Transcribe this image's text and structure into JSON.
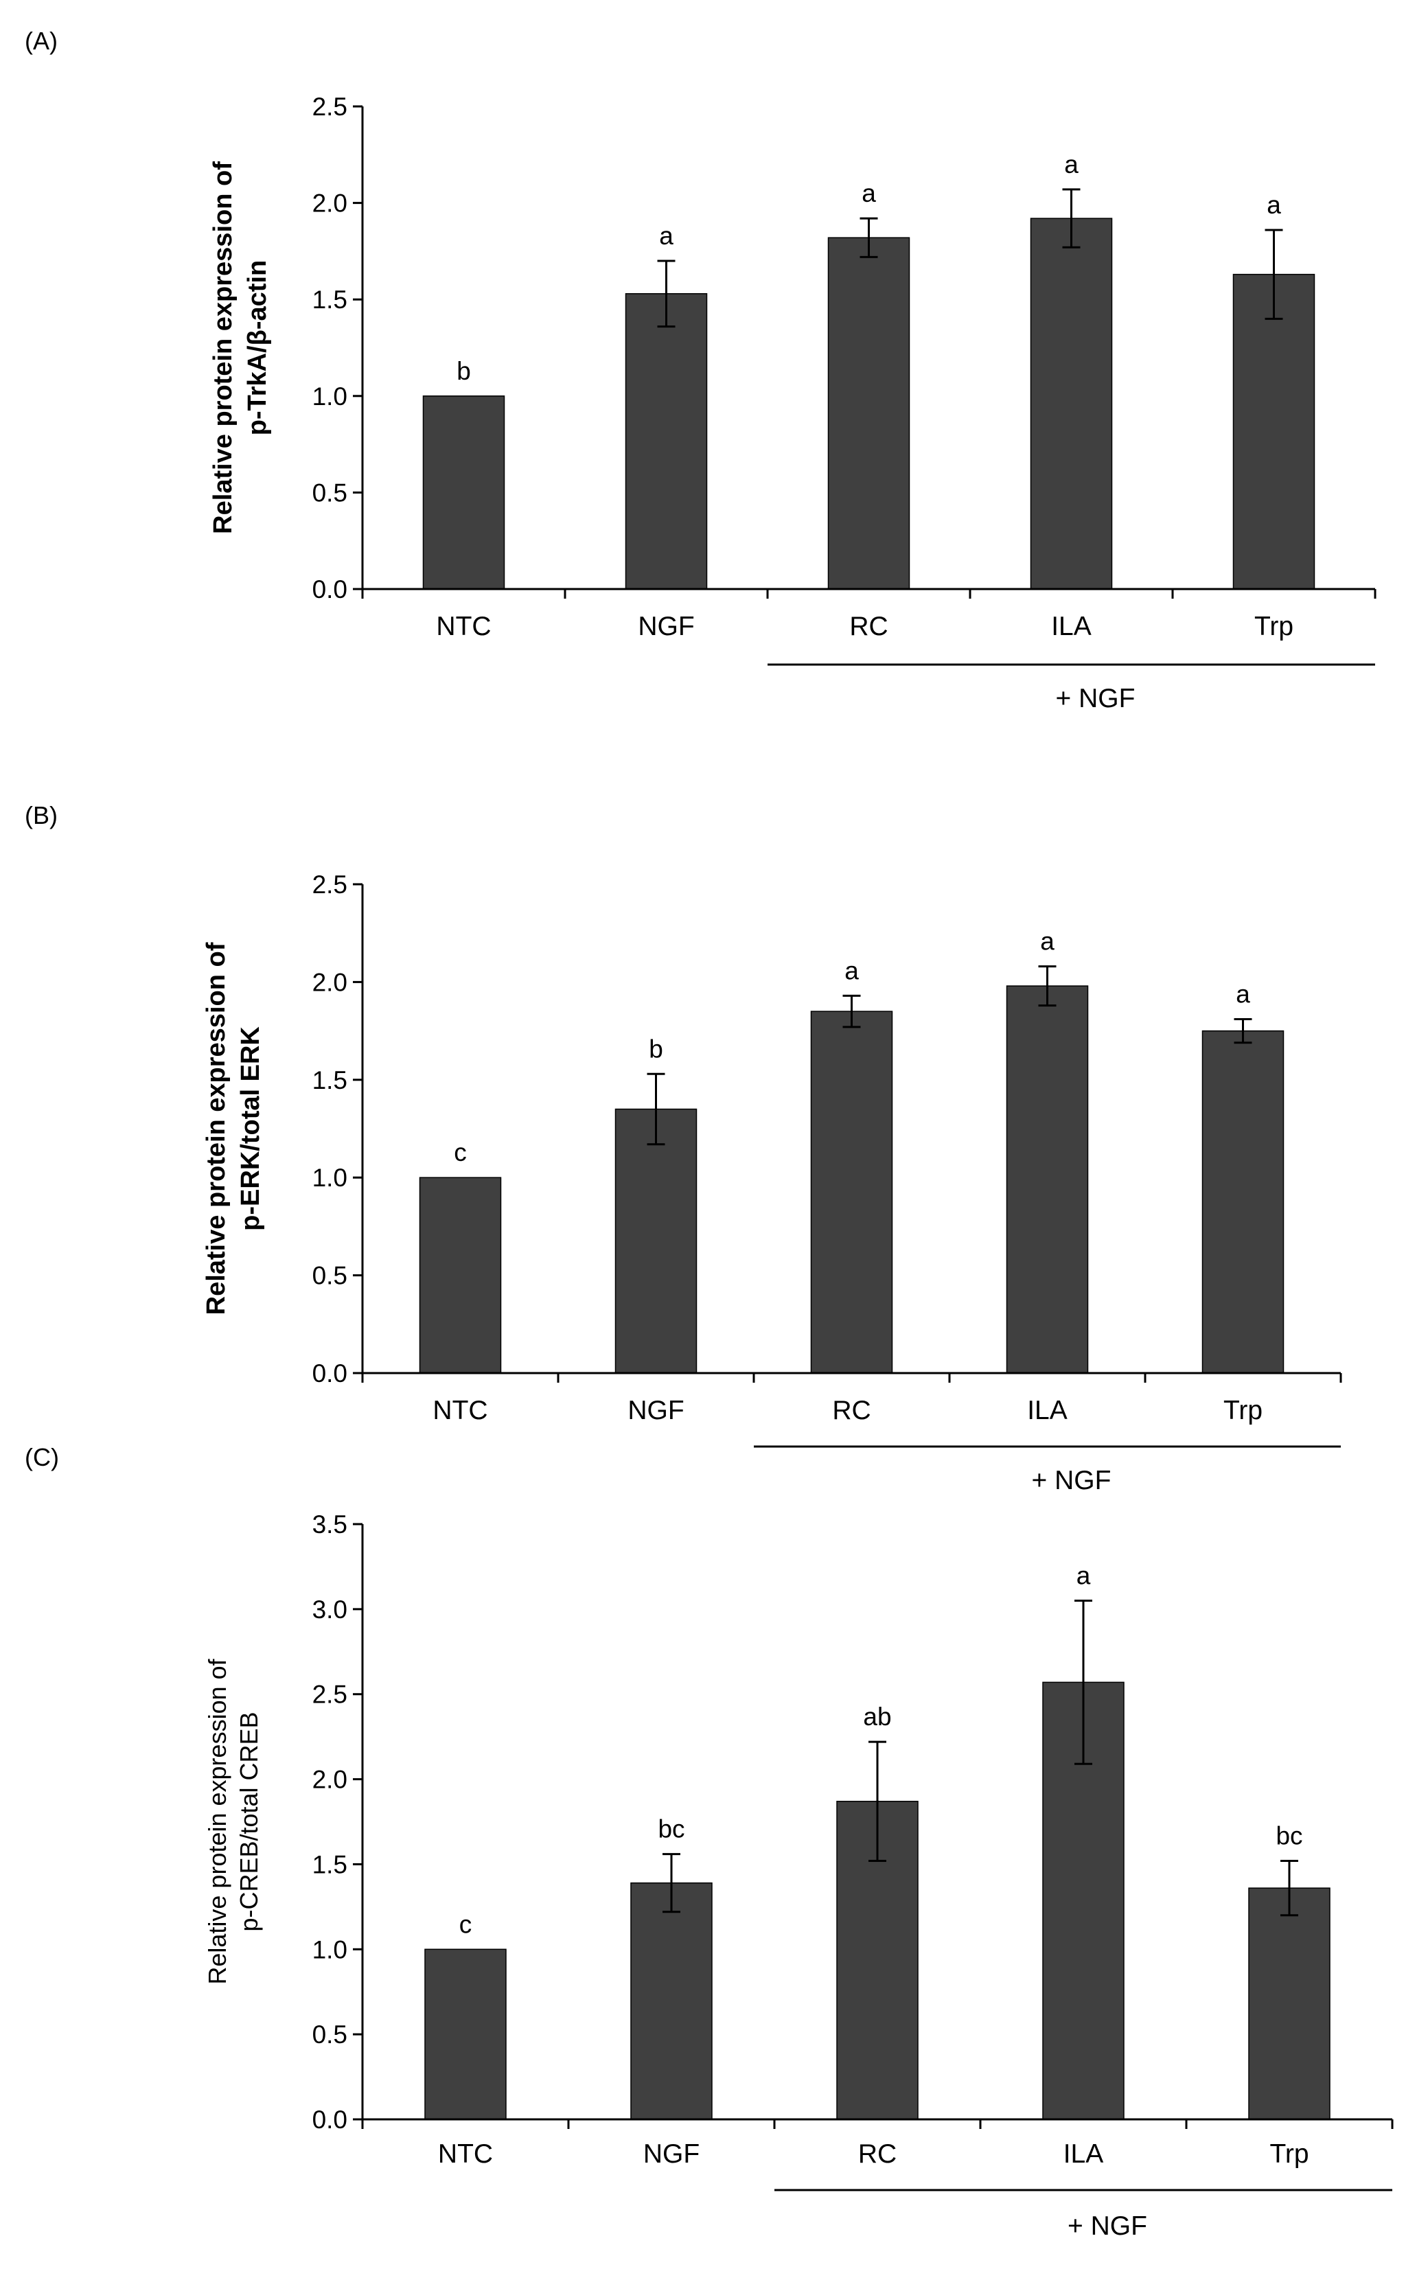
{
  "chart_data": [
    {
      "type": "bar",
      "panel_label": "(A)",
      "categories": [
        "NTC",
        "NGF",
        "RC",
        "ILA",
        "Trp"
      ],
      "values": [
        1.0,
        1.53,
        1.82,
        1.92,
        1.63
      ],
      "errors": [
        0.0,
        0.17,
        0.1,
        0.15,
        0.23
      ],
      "significance": [
        "b",
        "a",
        "a",
        "a",
        "a"
      ],
      "ylabel_lines": [
        "Relative protein expression of",
        "p-TrkA/β-actin"
      ],
      "ylim": [
        0,
        2.5
      ],
      "yticks": [
        "0.0",
        "0.5",
        "1.0",
        "1.5",
        "2.0",
        "2.5"
      ],
      "group_label": "+ NGF",
      "grid": false
    },
    {
      "type": "bar",
      "panel_label": "(B)",
      "categories": [
        "NTC",
        "NGF",
        "RC",
        "ILA",
        "Trp"
      ],
      "values": [
        1.0,
        1.35,
        1.85,
        1.98,
        1.75
      ],
      "errors": [
        0.0,
        0.18,
        0.08,
        0.1,
        0.06
      ],
      "significance": [
        "c",
        "b",
        "a",
        "a",
        "a"
      ],
      "ylabel_lines": [
        "Relative protein expression of",
        "p-ERK/total ERK"
      ],
      "ylim": [
        0,
        2.5
      ],
      "yticks": [
        "0.0",
        "0.5",
        "1.0",
        "1.5",
        "2.0",
        "2.5"
      ],
      "group_label": "+ NGF",
      "grid": false
    },
    {
      "type": "bar",
      "panel_label": "(C)",
      "categories": [
        "NTC",
        "NGF",
        "RC",
        "ILA",
        "Trp"
      ],
      "values": [
        1.0,
        1.39,
        1.87,
        2.57,
        1.36
      ],
      "errors": [
        0.0,
        0.17,
        0.35,
        0.48,
        0.16
      ],
      "significance": [
        "c",
        "bc",
        "ab",
        "a",
        "bc"
      ],
      "ylabel_lines": [
        "Relative protein expression of",
        "p-CREB/total CREB"
      ],
      "ylim": [
        0,
        3.5
      ],
      "yticks": [
        "0.0",
        "0.5",
        "1.0",
        "1.5",
        "2.0",
        "2.5",
        "3.0",
        "3.5"
      ],
      "group_label": "+ NGF",
      "grid": false
    }
  ]
}
